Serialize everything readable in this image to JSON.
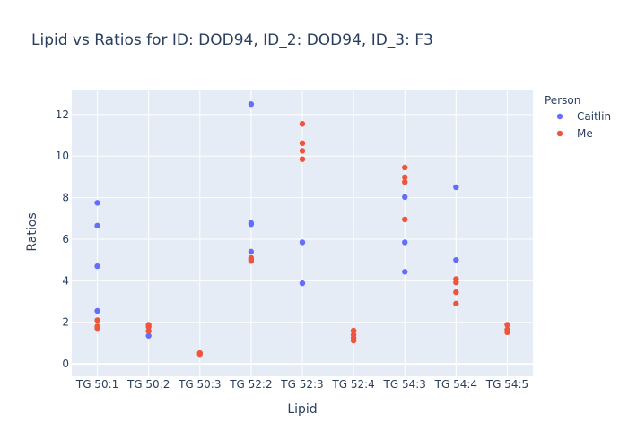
{
  "chart_data": {
    "type": "scatter",
    "title": "Lipid vs Ratios for ID: DOD94, ID_2: DOD94, ID_3: F3",
    "xlabel": "Lipid",
    "ylabel": "Ratios",
    "categories": [
      "TG 50:1",
      "TG 50:2",
      "TG 50:3",
      "TG 52:2",
      "TG 52:3",
      "TG 52:4",
      "TG 54:3",
      "TG 54:4",
      "TG 54:5"
    ],
    "ylim": [
      -0.6,
      13.2
    ],
    "yticks": [
      0,
      2,
      4,
      6,
      8,
      10,
      12
    ],
    "grid": true,
    "plot_bg": "#e5ecf6",
    "legend": {
      "title": "Person",
      "placement": "top-right"
    },
    "series": [
      {
        "name": "Caitlin",
        "color": "#636efa",
        "points": [
          [
            "TG 50:1",
            7.75
          ],
          [
            "TG 50:1",
            6.65
          ],
          [
            "TG 50:1",
            4.7
          ],
          [
            "TG 50:1",
            2.55
          ],
          [
            "TG 50:2",
            1.35
          ],
          [
            "TG 52:2",
            12.5
          ],
          [
            "TG 52:2",
            6.78
          ],
          [
            "TG 52:2",
            6.72
          ],
          [
            "TG 52:2",
            5.4
          ],
          [
            "TG 52:3",
            5.85
          ],
          [
            "TG 52:3",
            3.88
          ],
          [
            "TG 54:3",
            8.03
          ],
          [
            "TG 54:3",
            5.85
          ],
          [
            "TG 54:3",
            4.43
          ],
          [
            "TG 54:4",
            8.5
          ],
          [
            "TG 54:4",
            5.0
          ]
        ]
      },
      {
        "name": "Me",
        "color": "#ef553b",
        "points": [
          [
            "TG 50:1",
            2.1
          ],
          [
            "TG 50:1",
            1.8
          ],
          [
            "TG 50:1",
            1.72
          ],
          [
            "TG 50:2",
            1.88
          ],
          [
            "TG 50:2",
            1.78
          ],
          [
            "TG 50:2",
            1.58
          ],
          [
            "TG 50:3",
            0.52
          ],
          [
            "TG 50:3",
            0.47
          ],
          [
            "TG 52:2",
            5.1
          ],
          [
            "TG 52:2",
            5.02
          ],
          [
            "TG 52:2",
            4.95
          ],
          [
            "TG 52:3",
            11.55
          ],
          [
            "TG 52:3",
            10.62
          ],
          [
            "TG 52:3",
            10.25
          ],
          [
            "TG 52:3",
            9.85
          ],
          [
            "TG 52:4",
            1.6
          ],
          [
            "TG 52:4",
            1.4
          ],
          [
            "TG 52:4",
            1.25
          ],
          [
            "TG 52:4",
            1.12
          ],
          [
            "TG 54:3",
            9.45
          ],
          [
            "TG 54:3",
            8.98
          ],
          [
            "TG 54:3",
            8.75
          ],
          [
            "TG 54:3",
            6.95
          ],
          [
            "TG 54:4",
            4.08
          ],
          [
            "TG 54:4",
            3.92
          ],
          [
            "TG 54:4",
            3.45
          ],
          [
            "TG 54:4",
            2.9
          ],
          [
            "TG 54:5",
            1.88
          ],
          [
            "TG 54:5",
            1.65
          ],
          [
            "TG 54:5",
            1.52
          ]
        ]
      }
    ]
  }
}
